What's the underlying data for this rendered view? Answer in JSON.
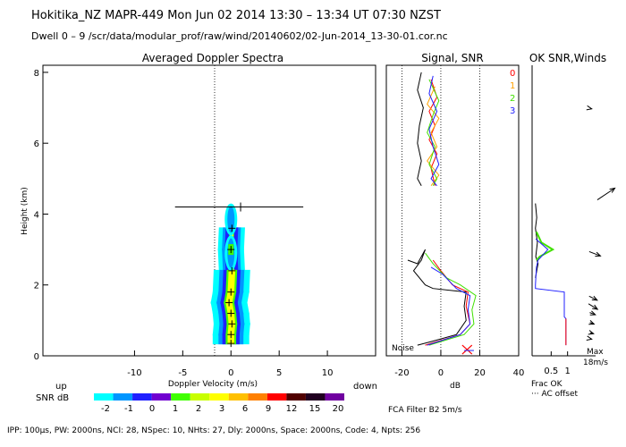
{
  "header": {
    "line1": "Hokitika_NZ   MAPR-449   Mon Jun 02 2014  13:30 – 13:34 UT 07:30 NZST",
    "line2": "Dwell   0 –  9    /scr/data/modular_prof/raw/wind/20140602/02-Jun-2014_13-30-01.cor.nc"
  },
  "footer": {
    "params": "IPP: 100μs,  PW: 2000ns,  NCI:  28,  NSpec: 10, NHts: 27,  Dly: 2000ns,  Space: 2000ns,  Code: 4,  Npts: 256"
  },
  "colors": {
    "snr_scale": [
      "#00ffff",
      "#0096ff",
      "#2020ff",
      "#7000d0",
      "#40ff00",
      "#c8ff00",
      "#ffff00",
      "#ffc000",
      "#ff8000",
      "#ff0000",
      "#500000",
      "#200020",
      "#7000a0"
    ],
    "channels": [
      "#ff0000",
      "#ffa000",
      "#40e000",
      "#2020ff"
    ]
  },
  "chart_data": [
    {
      "type": "heatmap",
      "title": "Averaged Doppler Spectra",
      "xlabel": "Doppler Velocity (m/s)",
      "ylabel": "Height (km)",
      "xlim": [
        -19.5,
        15
      ],
      "ylim": [
        0,
        8.2
      ],
      "x_ticks": [
        "-10",
        "-5",
        "0",
        "5",
        "10"
      ],
      "y_ticks": [
        "0",
        "2",
        "4",
        "6",
        "8"
      ],
      "direction_labels": {
        "left": "up",
        "right": "down"
      },
      "peak_profile": [
        {
          "h": 0.35,
          "v": 0.0
        },
        {
          "h": 0.6,
          "v": 0.0
        },
        {
          "h": 0.9,
          "v": 0.1
        },
        {
          "h": 1.2,
          "v": 0.0
        },
        {
          "h": 1.5,
          "v": -0.2
        },
        {
          "h": 1.8,
          "v": 0.0
        },
        {
          "h": 2.4,
          "v": 0.1
        },
        {
          "h": 3.0,
          "v": 0.0
        },
        {
          "h": 3.6,
          "v": 0.1
        }
      ],
      "error_bar": {
        "h": 4.2,
        "v_min": -5.8,
        "v_max": 7.5
      },
      "colorbar": {
        "label": "SNR dB",
        "ticks": [
          "-2",
          "-1",
          "0",
          "1",
          "2",
          "3",
          "6",
          "9",
          "12",
          "15",
          "20"
        ]
      }
    },
    {
      "type": "line",
      "title": "Signal, SNR",
      "xlabel": "dB",
      "xlim": [
        -28,
        40
      ],
      "ylim": [
        0,
        8.2
      ],
      "x_ticks": [
        "-20",
        "0",
        "20",
        "40"
      ],
      "annotations": [
        "Noise"
      ],
      "series": [
        {
          "color": "#000000",
          "points": [
            [
              -10,
              8.0
            ],
            [
              -12,
              7.5
            ],
            [
              -9,
              7.0
            ],
            [
              -11,
              6.5
            ],
            [
              -12,
              6.0
            ],
            [
              -10,
              5.5
            ],
            [
              -12,
              5.0
            ],
            [
              -10,
              4.8
            ]
          ]
        },
        {
          "color": "#ff0000",
          "points": [
            [
              -5,
              7.8
            ],
            [
              -2,
              7.3
            ],
            [
              -6,
              6.9
            ],
            [
              -3,
              6.5
            ],
            [
              -6,
              6.1
            ],
            [
              -2,
              5.7
            ],
            [
              -5,
              5.3
            ],
            [
              -3,
              4.8
            ]
          ]
        },
        {
          "color": "#ffa000",
          "points": [
            [
              -3,
              7.6
            ],
            [
              -7,
              7.1
            ],
            [
              -1,
              6.7
            ],
            [
              -5,
              6.3
            ],
            [
              -2,
              5.9
            ],
            [
              -7,
              5.5
            ],
            [
              -1,
              5.1
            ],
            [
              -5,
              4.8
            ]
          ]
        },
        {
          "color": "#40e000",
          "points": [
            [
              -6,
              7.8
            ],
            [
              -1,
              7.2
            ],
            [
              -4,
              6.8
            ],
            [
              -7,
              6.3
            ],
            [
              -3,
              5.9
            ],
            [
              -6,
              5.4
            ],
            [
              -2,
              5.0
            ],
            [
              -4,
              4.8
            ]
          ]
        },
        {
          "color": "#2020ff",
          "points": [
            [
              -4,
              7.9
            ],
            [
              -6,
              7.4
            ],
            [
              -2,
              6.9
            ],
            [
              -6,
              6.4
            ],
            [
              -4,
              5.9
            ],
            [
              -1,
              5.4
            ],
            [
              -5,
              5.0
            ],
            [
              -2,
              4.8
            ]
          ]
        },
        {
          "color": "#000000",
          "points": [
            [
              -17,
              2.7
            ],
            [
              -12,
              2.6
            ],
            [
              -8,
              3.0
            ],
            [
              -10,
              2.7
            ],
            [
              -14,
              2.4
            ],
            [
              -8,
              2.0
            ],
            [
              -4,
              1.9
            ],
            [
              13,
              1.8
            ],
            [
              12,
              1.4
            ],
            [
              13,
              1.0
            ],
            [
              8,
              0.6
            ],
            [
              -5,
              0.4
            ],
            [
              -12,
              0.3
            ]
          ]
        },
        {
          "color": "#ff0000",
          "points": [
            [
              -4,
              2.7
            ],
            [
              0,
              2.4
            ],
            [
              6,
              2.0
            ],
            [
              14,
              1.8
            ],
            [
              13,
              1.4
            ],
            [
              15,
              0.9
            ],
            [
              10,
              0.6
            ],
            [
              -8,
              0.3
            ]
          ]
        },
        {
          "color": "#40e000",
          "points": [
            [
              -8,
              2.9
            ],
            [
              -4,
              2.6
            ],
            [
              3,
              2.2
            ],
            [
              10,
              2.0
            ],
            [
              18,
              1.7
            ],
            [
              16,
              1.3
            ],
            [
              17,
              0.9
            ],
            [
              12,
              0.6
            ],
            [
              -6,
              0.3
            ]
          ]
        },
        {
          "color": "#2020ff",
          "points": [
            [
              -5,
              2.5
            ],
            [
              1,
              2.3
            ],
            [
              8,
              1.9
            ],
            [
              15,
              1.7
            ],
            [
              14,
              1.3
            ],
            [
              15,
              0.9
            ],
            [
              10,
              0.6
            ],
            [
              -7,
              0.3
            ]
          ]
        }
      ]
    },
    {
      "type": "line",
      "title": "OK SNR,Winds",
      "xlabel": "Frac OK",
      "footnote": "··· AC offset",
      "xlim": [
        0,
        1.2
      ],
      "ylim": [
        0,
        8.2
      ],
      "x_ticks": [
        "0.5",
        "1"
      ],
      "legend_keys": [
        "0",
        "1",
        "2",
        "3"
      ],
      "speed_label": "Max\n18m/s",
      "series": [
        {
          "color": "#000000",
          "points": [
            [
              0.02,
              4.3
            ],
            [
              0.06,
              3.9
            ],
            [
              0.02,
              3.6
            ],
            [
              0.08,
              3.2
            ],
            [
              0.03,
              2.8
            ],
            [
              0.1,
              2.6
            ],
            [
              0.02,
              2.2
            ]
          ]
        },
        {
          "color": "#40e000",
          "points": [
            [
              0.05,
              3.5
            ],
            [
              0.2,
              3.2
            ],
            [
              0.55,
              3.0
            ],
            [
              0.15,
              2.8
            ],
            [
              0.05,
              2.7
            ]
          ]
        },
        {
          "color": "#2020ff",
          "points": [
            [
              0.03,
              3.3
            ],
            [
              0.4,
              3.0
            ],
            [
              0.1,
              2.7
            ],
            [
              0.05,
              2.5
            ],
            [
              0.02,
              2.0
            ],
            [
              0.02,
              1.9
            ],
            [
              0.9,
              1.8
            ],
            [
              0.9,
              1.1
            ],
            [
              0.95,
              1.05
            ],
            [
              0.95,
              0.3
            ]
          ]
        },
        {
          "color": "#ff0000",
          "points": [
            [
              0.95,
              1.05
            ],
            [
              0.95,
              0.3
            ]
          ]
        }
      ],
      "wind_vectors": [
        {
          "h": 7.0,
          "length": 0.05,
          "angle_deg": -90
        },
        {
          "h": 4.6,
          "length": 0.7,
          "angle_deg": -135
        },
        {
          "h": 3.1,
          "length": 0.4,
          "angle_deg": -80
        },
        {
          "h": 1.8,
          "length": 0.3,
          "angle_deg": -75
        },
        {
          "h": 1.6,
          "length": 0.35,
          "angle_deg": -70
        },
        {
          "h": 1.3,
          "length": 0.2,
          "angle_deg": -80
        },
        {
          "h": 1.0,
          "length": 0.15,
          "angle_deg": -80
        },
        {
          "h": 0.7,
          "length": 0.12,
          "angle_deg": -85
        },
        {
          "h": 0.5,
          "length": 0.05,
          "angle_deg": -90
        }
      ]
    }
  ],
  "bottom_center": {
    "filter": "FCA Filter B2  5m/s"
  }
}
